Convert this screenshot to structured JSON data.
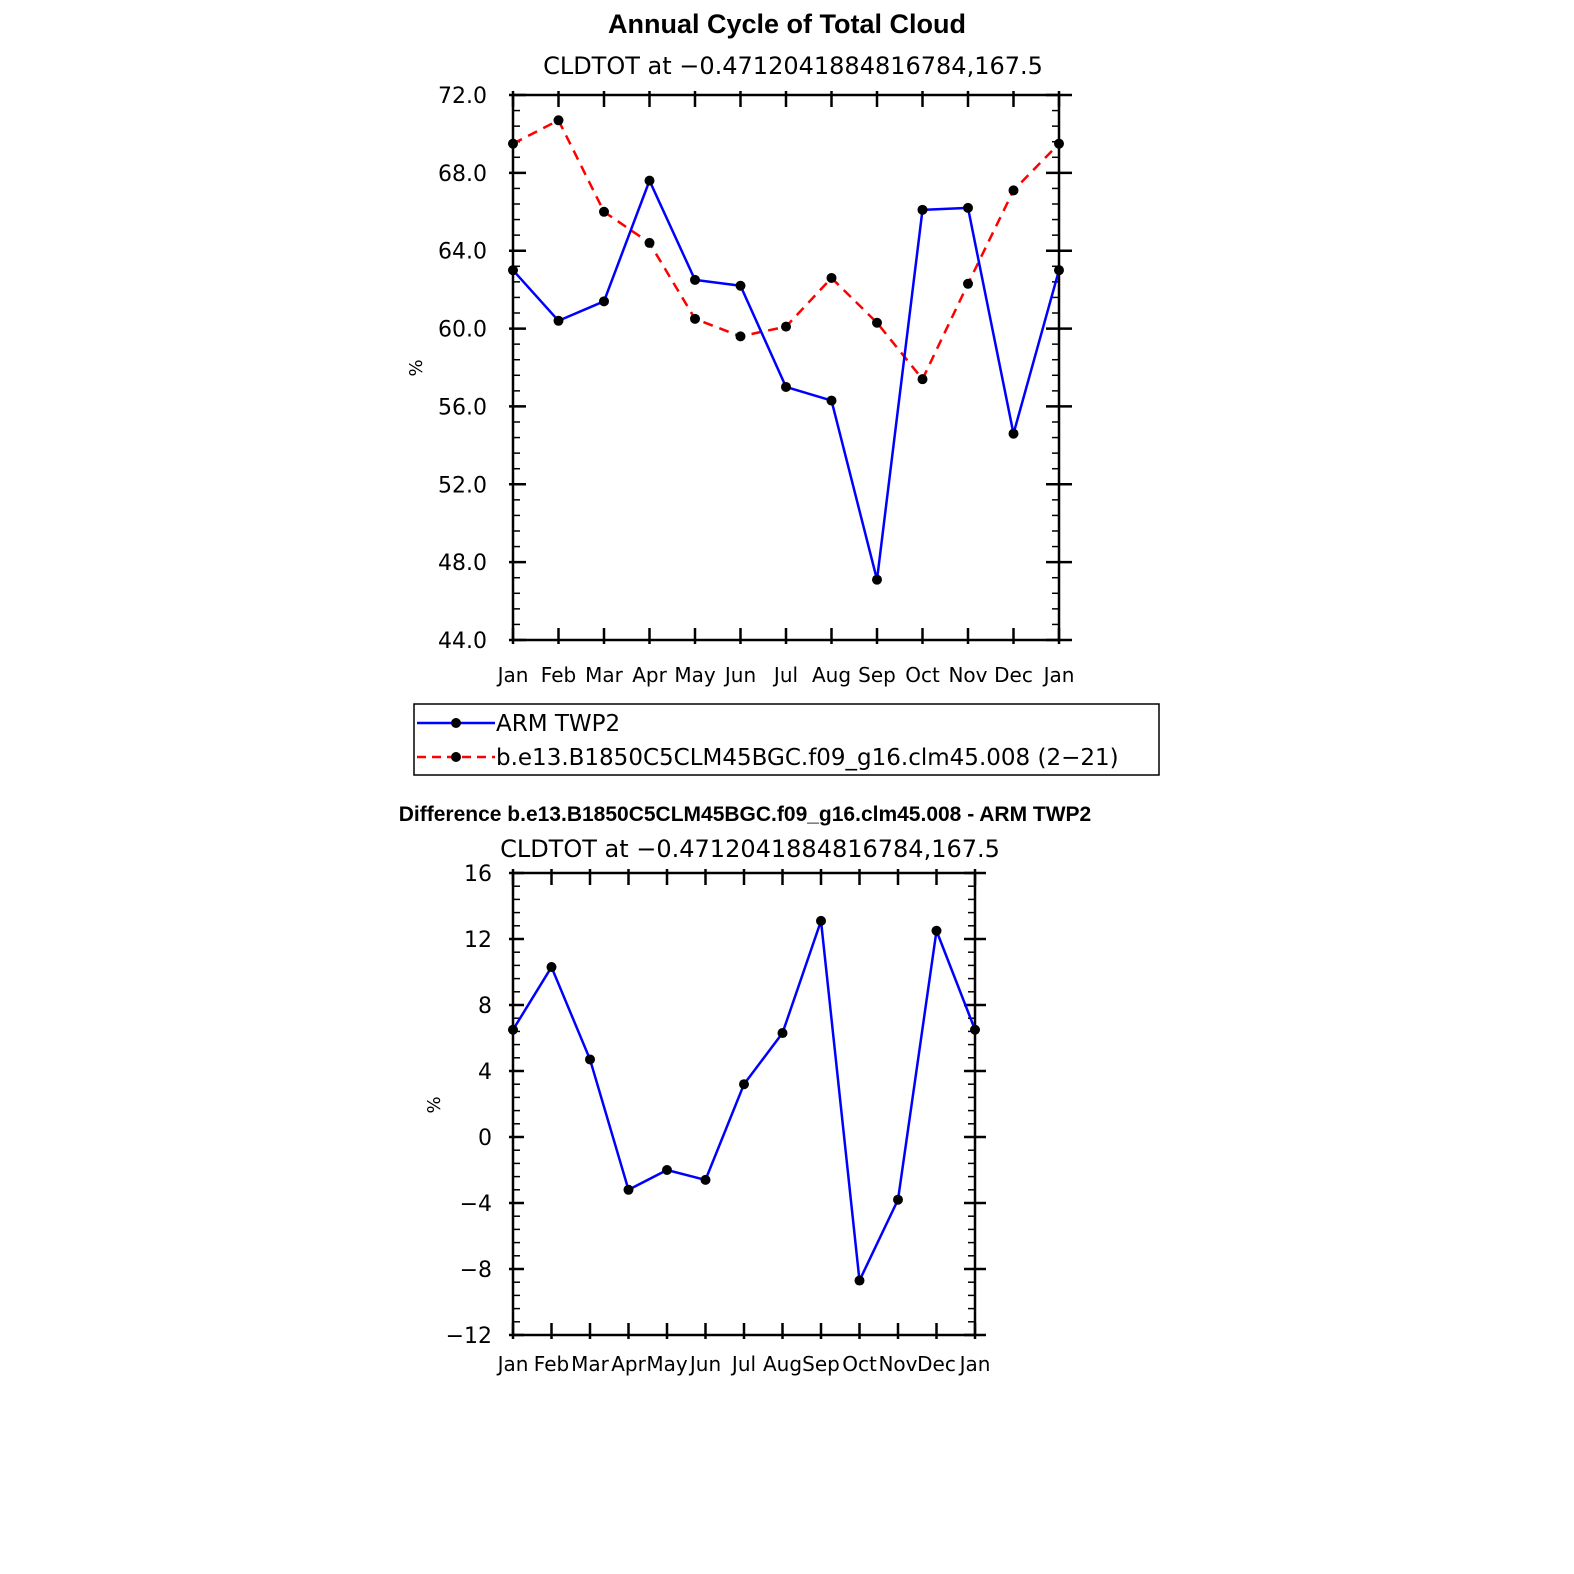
{
  "chart_data": [
    {
      "type": "line",
      "title": "Annual Cycle of Total Cloud",
      "subtitle": "CLDTOT at −0.4712041884816784,167.5",
      "xlabel": "",
      "ylabel": "%",
      "categories": [
        "Jan",
        "Feb",
        "Mar",
        "Apr",
        "May",
        "Jun",
        "Jul",
        "Aug",
        "Sep",
        "Oct",
        "Nov",
        "Dec",
        "Jan"
      ],
      "ylim": [
        44.0,
        72.0
      ],
      "yticks": [
        "44.0",
        "48.0",
        "52.0",
        "56.0",
        "60.0",
        "64.0",
        "68.0",
        "72.0"
      ],
      "grid": false,
      "legend_position": "below",
      "series": [
        {
          "name": "ARM TWP2",
          "color": "#0000ff",
          "dash": "solid",
          "values": [
            63.0,
            60.4,
            61.4,
            67.6,
            62.5,
            62.2,
            57.0,
            56.3,
            47.1,
            66.1,
            66.2,
            54.6,
            63.0
          ]
        },
        {
          "name": "b.e13.B1850C5CLM45BGC.f09_g16.clm45.008 (2−21)",
          "color": "#ff0000",
          "dash": "dashed",
          "values": [
            69.5,
            70.7,
            66.0,
            64.4,
            60.5,
            59.6,
            60.1,
            62.6,
            60.3,
            57.4,
            62.3,
            67.1,
            69.5
          ]
        }
      ]
    },
    {
      "type": "line",
      "title": "Difference b.e13.B1850C5CLM45BGC.f09_g16.clm45.008 - ARM TWP2",
      "subtitle": "CLDTOT at −0.4712041884816784,167.5",
      "xlabel": "",
      "ylabel": "%",
      "categories": [
        "Jan",
        "Feb",
        "Mar",
        "Apr",
        "May",
        "Jun",
        "Jul",
        "Aug",
        "Sep",
        "Oct",
        "Nov",
        "Dec",
        "Jan"
      ],
      "ylim": [
        -12,
        16
      ],
      "yticks": [
        "−12",
        "−8",
        "−4",
        "0",
        "4",
        "8",
        "12",
        "16"
      ],
      "grid": false,
      "series": [
        {
          "color": "#0000ff",
          "dash": "solid",
          "values": [
            6.5,
            10.3,
            4.7,
            -3.2,
            -2.0,
            -2.6,
            3.2,
            6.3,
            13.1,
            -8.7,
            -3.8,
            12.5,
            6.5
          ]
        }
      ]
    }
  ]
}
